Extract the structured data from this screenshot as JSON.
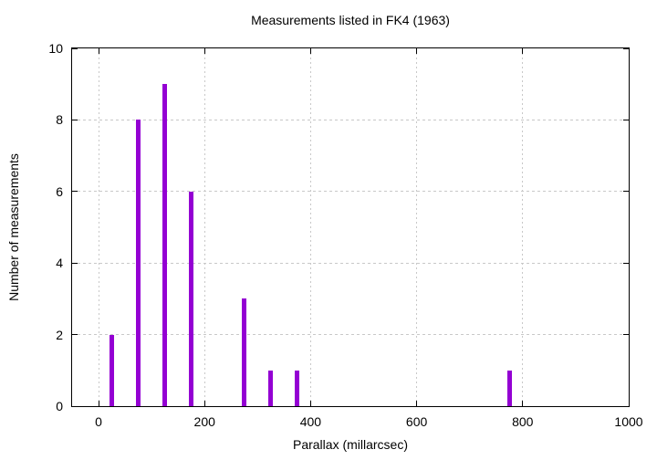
{
  "chart_data": {
    "type": "bar",
    "title": "Measurements listed in FK4 (1963)",
    "xlabel": "Parallax (millarcsec)",
    "ylabel": "Number of measurements",
    "x": [
      25,
      75,
      125,
      175,
      275,
      325,
      375,
      775
    ],
    "values": [
      2,
      8,
      9,
      6,
      3,
      1,
      1,
      1
    ],
    "bin_width": 50,
    "xlim": [
      -50,
      1000
    ],
    "ylim": [
      0,
      10
    ],
    "x_ticks": [
      0,
      200,
      400,
      600,
      800,
      1000
    ],
    "y_ticks": [
      0,
      2,
      4,
      6,
      8,
      10
    ],
    "grid": true,
    "legend": "none",
    "bar_color": "#9400d3",
    "grid_color": "#c8c8c8",
    "axis_color": "#000000",
    "background_color": "#ffffff"
  }
}
